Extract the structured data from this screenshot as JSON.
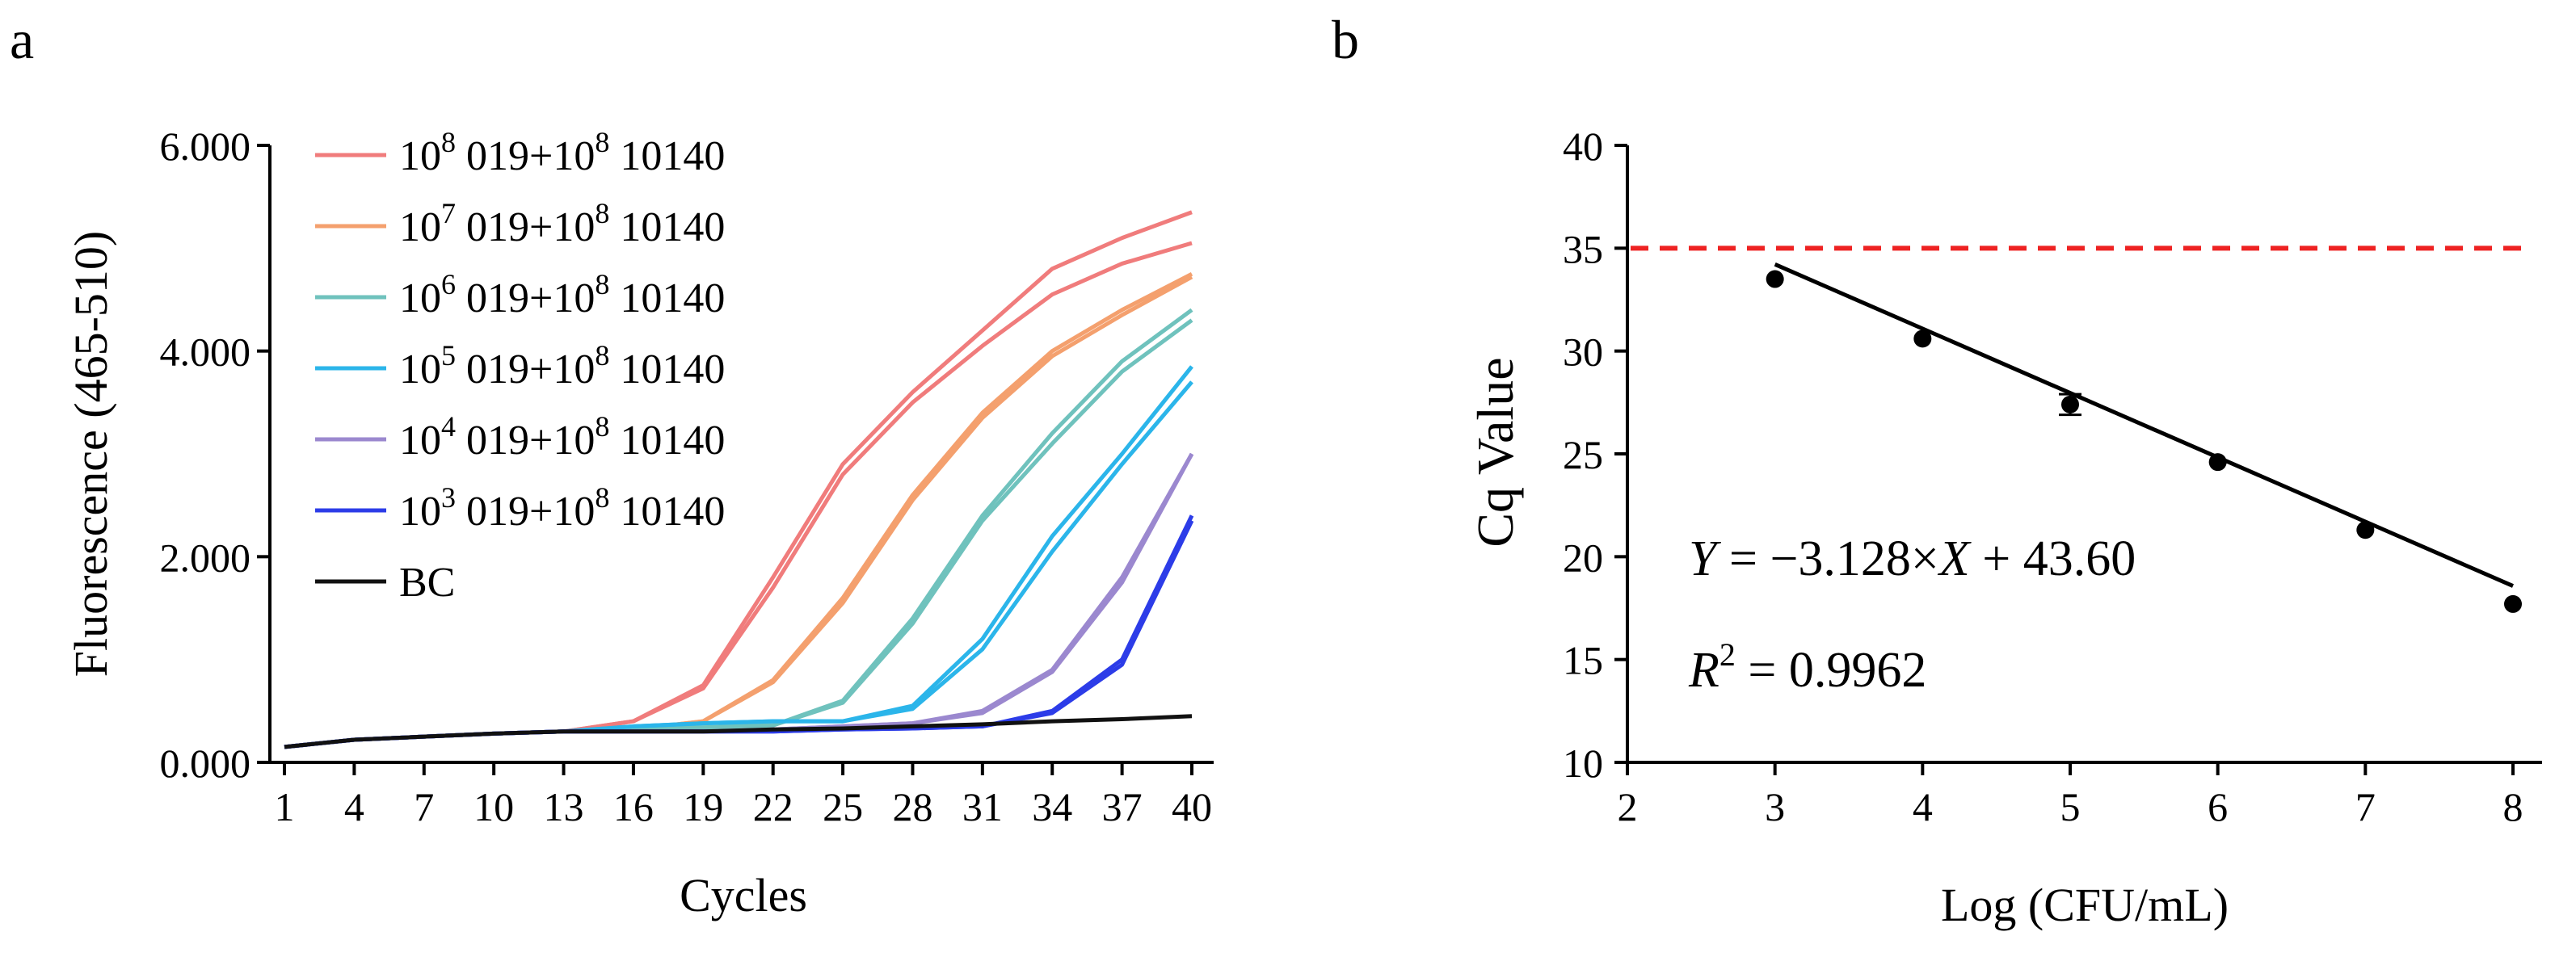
{
  "chart_data": [
    {
      "panel": "a",
      "type": "line",
      "xlabel": "Cycles",
      "ylabel": "Fluorescence (465-510)",
      "xlim": [
        1,
        40
      ],
      "ylim": [
        0,
        6
      ],
      "x_ticks": [
        "1",
        "4",
        "7",
        "10",
        "13",
        "16",
        "19",
        "22",
        "25",
        "28",
        "31",
        "34",
        "37",
        "40"
      ],
      "y_ticks": [
        "0.000",
        "2.000",
        "4.000",
        "6.000"
      ],
      "legend_position": "top-left",
      "x": [
        1,
        4,
        7,
        10,
        13,
        16,
        19,
        22,
        25,
        28,
        31,
        34,
        37,
        40
      ],
      "series": [
        {
          "legend_base": "10",
          "legend_exp": "8",
          "legend_rest": " 019+10",
          "legend_exp2": "8",
          "legend_tail": " 10140",
          "color": "#f07c7c",
          "replicates": [
            [
              0.15,
              0.22,
              0.25,
              0.28,
              0.3,
              0.4,
              0.75,
              1.8,
              2.9,
              3.6,
              4.2,
              4.8,
              5.1,
              5.35
            ],
            [
              0.15,
              0.22,
              0.25,
              0.28,
              0.3,
              0.4,
              0.72,
              1.7,
              2.8,
              3.5,
              4.05,
              4.55,
              4.85,
              5.05
            ]
          ]
        },
        {
          "legend_base": "10",
          "legend_exp": "7",
          "legend_rest": " 019+10",
          "legend_exp2": "8",
          "legend_tail": " 10140",
          "color": "#f4a06e",
          "replicates": [
            [
              0.15,
              0.22,
              0.25,
              0.28,
              0.3,
              0.32,
              0.4,
              0.8,
              1.6,
              2.6,
              3.4,
              4.0,
              4.4,
              4.75
            ],
            [
              0.15,
              0.22,
              0.25,
              0.28,
              0.3,
              0.32,
              0.4,
              0.78,
              1.55,
              2.55,
              3.35,
              3.95,
              4.35,
              4.72
            ]
          ]
        },
        {
          "legend_base": "10",
          "legend_exp": "6",
          "legend_rest": " 019+10",
          "legend_exp2": "8",
          "legend_tail": " 10140",
          "color": "#6fc2bd",
          "replicates": [
            [
              0.15,
              0.22,
              0.25,
              0.28,
              0.3,
              0.32,
              0.34,
              0.36,
              0.6,
              1.4,
              2.4,
              3.2,
              3.9,
              4.4
            ],
            [
              0.15,
              0.22,
              0.25,
              0.28,
              0.3,
              0.32,
              0.34,
              0.36,
              0.58,
              1.35,
              2.35,
              3.1,
              3.8,
              4.3
            ]
          ]
        },
        {
          "legend_base": "10",
          "legend_exp": "5",
          "legend_rest": " 019+10",
          "legend_exp2": "8",
          "legend_tail": " 10140",
          "color": "#2bb5ea",
          "replicates": [
            [
              0.15,
              0.22,
              0.25,
              0.28,
              0.3,
              0.35,
              0.38,
              0.4,
              0.4,
              0.55,
              1.2,
              2.2,
              3.0,
              3.85
            ],
            [
              0.15,
              0.22,
              0.25,
              0.28,
              0.3,
              0.35,
              0.38,
              0.4,
              0.4,
              0.52,
              1.1,
              2.05,
              2.9,
              3.7
            ]
          ]
        },
        {
          "legend_base": "10",
          "legend_exp": "4",
          "legend_rest": " 019+10",
          "legend_exp2": "8",
          "legend_tail": " 10140",
          "color": "#9b88cf",
          "replicates": [
            [
              0.15,
              0.22,
              0.25,
              0.28,
              0.3,
              0.3,
              0.3,
              0.32,
              0.35,
              0.38,
              0.5,
              0.9,
              1.8,
              3.0
            ],
            [
              0.15,
              0.22,
              0.25,
              0.28,
              0.3,
              0.3,
              0.3,
              0.32,
              0.35,
              0.38,
              0.48,
              0.88,
              1.75,
              3.0
            ]
          ]
        },
        {
          "legend_base": "10",
          "legend_exp": "3",
          "legend_rest": " 019+10",
          "legend_exp2": "8",
          "legend_tail": " 10140",
          "color": "#2c3ce8",
          "replicates": [
            [
              0.15,
              0.22,
              0.25,
              0.28,
              0.3,
              0.3,
              0.3,
              0.3,
              0.32,
              0.33,
              0.35,
              0.5,
              1.0,
              2.4
            ],
            [
              0.15,
              0.22,
              0.25,
              0.28,
              0.3,
              0.3,
              0.3,
              0.3,
              0.32,
              0.33,
              0.35,
              0.48,
              0.95,
              2.35
            ]
          ]
        },
        {
          "legend_base": "BC",
          "legend_exp": "",
          "legend_rest": "",
          "legend_exp2": "",
          "legend_tail": "",
          "color": "#111111",
          "replicates": [
            [
              0.15,
              0.22,
              0.25,
              0.28,
              0.3,
              0.3,
              0.3,
              0.32,
              0.33,
              0.35,
              0.37,
              0.4,
              0.42,
              0.45
            ]
          ]
        }
      ]
    },
    {
      "panel": "b",
      "type": "scatter",
      "xlabel": "Log (CFU/mL)",
      "ylabel": "Cq Value",
      "xlim": [
        2,
        8
      ],
      "ylim": [
        10,
        40
      ],
      "x_ticks": [
        "2",
        "3",
        "4",
        "5",
        "6",
        "7",
        "8"
      ],
      "y_ticks": [
        "10",
        "15",
        "20",
        "25",
        "30",
        "35",
        "40"
      ],
      "points": {
        "x": [
          3,
          4,
          5,
          6,
          7,
          8
        ],
        "y": [
          33.5,
          30.6,
          27.4,
          24.6,
          21.3,
          17.7
        ],
        "err": [
          0,
          0,
          0.5,
          0,
          0,
          0
        ]
      },
      "fit": {
        "slope": -3.128,
        "intercept": 43.6,
        "x_range": [
          3,
          8
        ]
      },
      "threshold": {
        "y": 35,
        "color": "#ee2222"
      },
      "equation": {
        "y_var": "Y",
        "rhs1": " = −3.128×",
        "x_var": "X",
        "rhs2": " + 43.60"
      },
      "r2": {
        "r_var": "R",
        "exp": "2",
        "value": " = 0.9962"
      }
    }
  ],
  "panel_labels": {
    "a": "a",
    "b": "b"
  }
}
